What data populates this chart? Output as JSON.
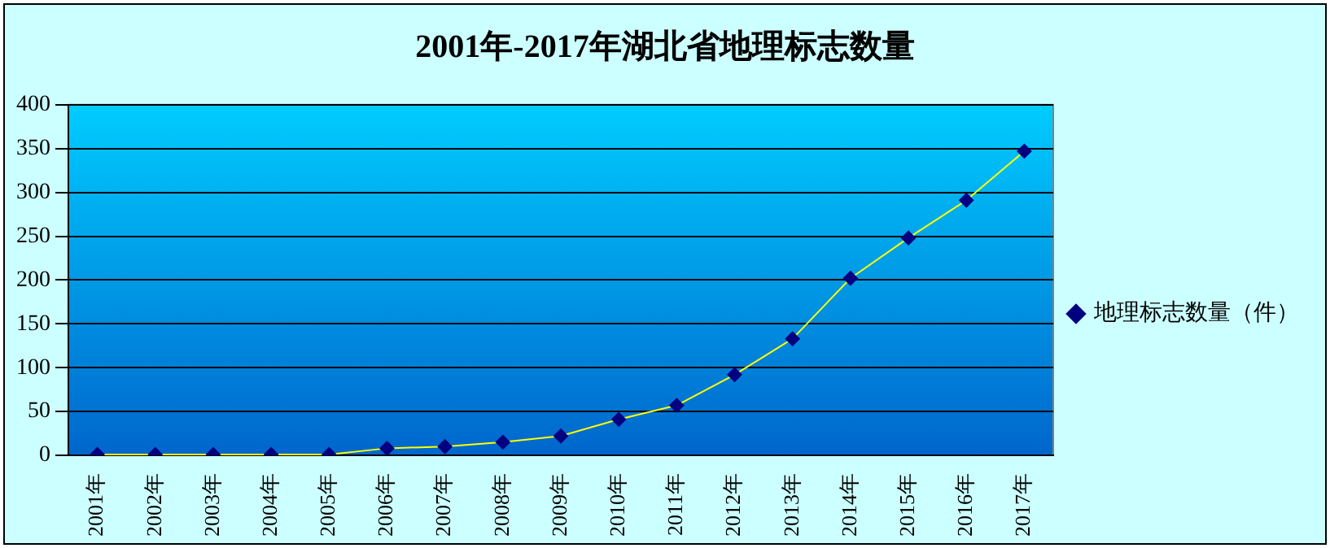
{
  "chart_data": {
    "type": "line",
    "title": "2001年-2017年湖北省地理标志数量",
    "categories": [
      "2001年",
      "2002年",
      "2003年",
      "2004年",
      "2005年",
      "2006年",
      "2007年",
      "2008年",
      "2009年",
      "2010年",
      "2011年",
      "2012年",
      "2013年",
      "2014年",
      "2015年",
      "2016年",
      "2017年"
    ],
    "series": [
      {
        "name": "地理标志数量（件）",
        "color": "#000080",
        "values": [
          1,
          1,
          1,
          1,
          1,
          8,
          10,
          15,
          22,
          41,
          57,
          92,
          133,
          202,
          248,
          291,
          347
        ]
      }
    ],
    "ylim": [
      0,
      400
    ],
    "yticks": [
      0,
      50,
      100,
      150,
      200,
      250,
      300,
      350,
      400
    ],
    "grid": "y",
    "legend": "right",
    "marker": "diamond",
    "line_style": "solid"
  }
}
